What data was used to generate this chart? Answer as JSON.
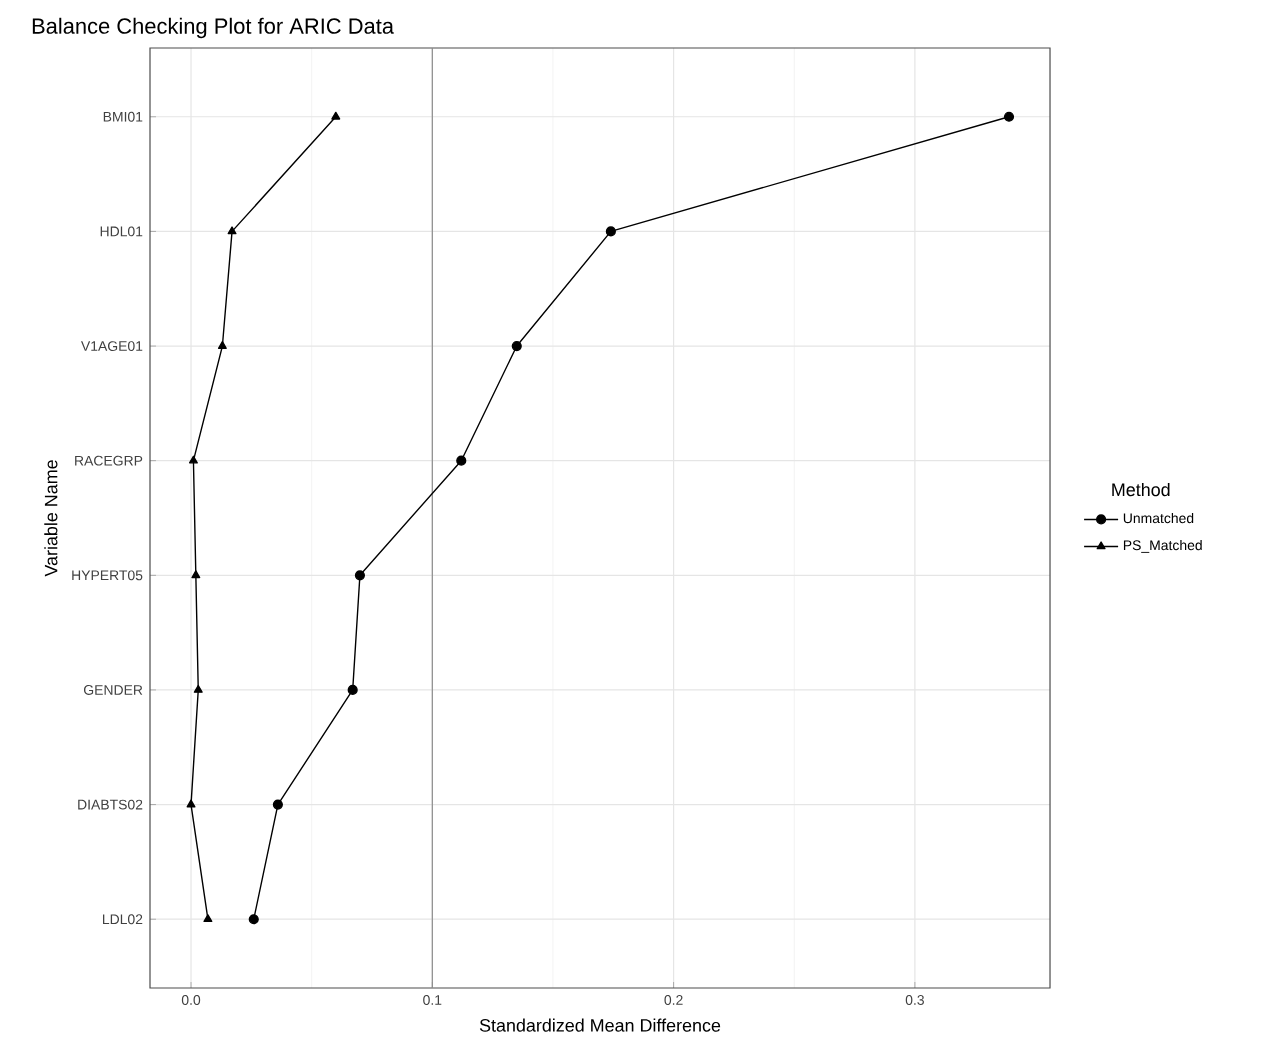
{
  "chart_data": {
    "type": "line",
    "title": "Balance Checking Plot for ARIC Data",
    "xlabel": "Standardized Mean Difference",
    "ylabel": "Variable Name",
    "legend_title": "Method",
    "orientation": "horizontal",
    "categories": [
      "BMI01",
      "HDL01",
      "V1AGE01",
      "RACEGRP",
      "HYPERT05",
      "GENDER",
      "DIABTS02",
      "LDL02"
    ],
    "series": [
      {
        "name": "Unmatched",
        "color": "#000000",
        "marker": "circle",
        "values": [
          0.339,
          0.174,
          0.135,
          0.112,
          0.07,
          0.067,
          0.036,
          0.026
        ]
      },
      {
        "name": "PS_Matched",
        "color": "#000000",
        "marker": "triangle",
        "values": [
          0.06,
          0.017,
          0.013,
          0.001,
          0.002,
          0.003,
          0.0,
          0.007
        ]
      }
    ],
    "xlim": [
      -0.017,
      0.356
    ],
    "xticks": [
      {
        "value": 0,
        "label": "0.0"
      },
      0.1,
      0.2,
      0.3
    ],
    "ref_lines": [
      {
        "axis": "x",
        "value": 0.1,
        "color": "#8c8c8c"
      }
    ],
    "grid": true,
    "legend": "right"
  }
}
